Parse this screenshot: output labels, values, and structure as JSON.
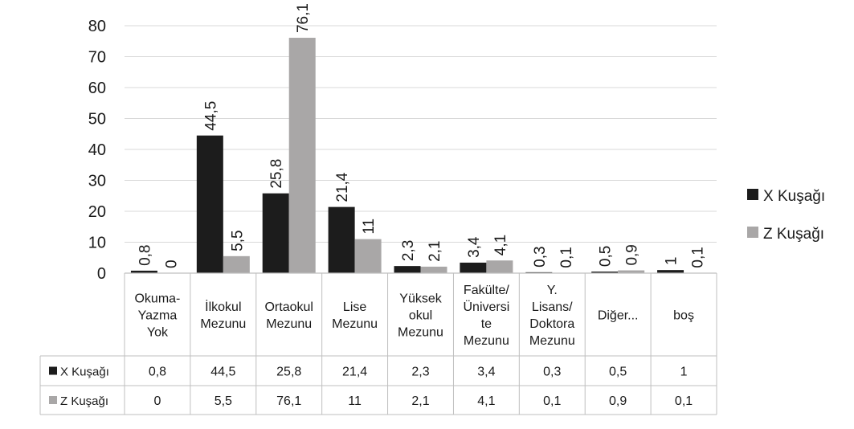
{
  "chart_data": {
    "type": "bar",
    "title": "",
    "xlabel": "",
    "ylabel": "",
    "ylim": [
      0,
      80
    ],
    "yticks": [
      0,
      10,
      20,
      30,
      40,
      50,
      60,
      70,
      80
    ],
    "grid": true,
    "legend_position": "right",
    "data_table": true,
    "categories": [
      [
        "Okuma-",
        "Yazma",
        "Yok"
      ],
      [
        "İlkokul",
        "Mezunu"
      ],
      [
        "Ortaokul",
        "Mezunu"
      ],
      [
        "Lise",
        "Mezunu"
      ],
      [
        "Yüksek",
        "okul",
        "Mezunu"
      ],
      [
        "Fakülte/",
        "Üniversi",
        "te",
        "Mezunu"
      ],
      [
        "Y.",
        "Lisans/",
        "Doktora",
        "Mezunu"
      ],
      [
        "Diğer..."
      ],
      [
        "boş"
      ]
    ],
    "series": [
      {
        "name": "X Kuşağı",
        "color": "#1c1c1c",
        "values": [
          0.8,
          44.5,
          25.8,
          21.4,
          2.3,
          3.4,
          0.3,
          0.5,
          1
        ],
        "labels": [
          "0,8",
          "44,5",
          "25,8",
          "21,4",
          "2,3",
          "3,4",
          "0,3",
          "0,5",
          "1"
        ]
      },
      {
        "name": "Z Kuşağı",
        "color": "#a9a7a7",
        "values": [
          0,
          5.5,
          76.1,
          11,
          2.1,
          4.1,
          0.1,
          0.9,
          0.1
        ],
        "labels": [
          "0",
          "5,5",
          "76,1",
          "11",
          "2,1",
          "4,1",
          "0,1",
          "0,9",
          "0,1"
        ]
      }
    ]
  }
}
